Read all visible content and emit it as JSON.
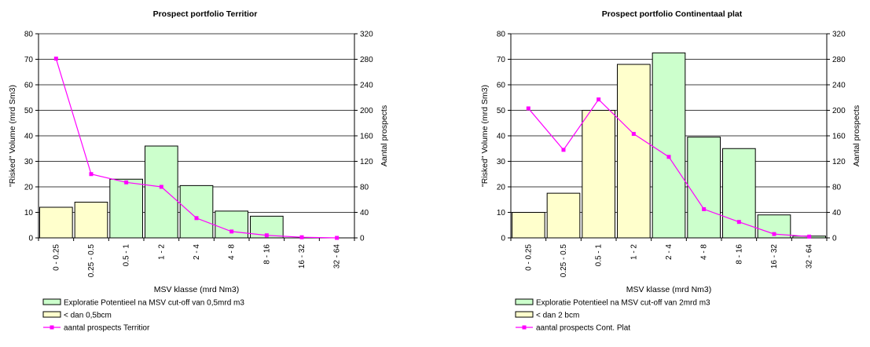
{
  "chart_data": [
    {
      "type": "bar",
      "title": "Prospect portfolio Territior",
      "xlabel": "MSV klasse (mrd Nm3)",
      "ylabel": "\"Risked\" Volume (mrd Sm3)",
      "y2label": "Aantal prospects",
      "ylim": [
        0,
        80
      ],
      "y2lim": [
        0,
        320
      ],
      "yticks": [
        "0",
        "10",
        "20",
        "30",
        "40",
        "50",
        "60",
        "70",
        "80"
      ],
      "y2ticks": [
        "0",
        "40",
        "80",
        "120",
        "160",
        "200",
        "240",
        "280",
        "320"
      ],
      "categories": [
        "0 - 0.25",
        "0.25 - 0.5",
        "0.5 - 1",
        "1 - 2",
        "2 - 4",
        "4 - 8",
        "8 - 16",
        "16 - 32",
        "32 - 64"
      ],
      "series": [
        {
          "name": "Exploratie Potentieel na MSV cut-off van 0,5mrd m3",
          "kind": "bar",
          "color": "#ccffcc",
          "values": [
            null,
            null,
            23,
            36,
            20.5,
            10.5,
            8.5,
            0,
            0
          ]
        },
        {
          "name": "< dan 0,5bcm",
          "kind": "bar",
          "color": "#ffffcc",
          "values": [
            12,
            14,
            null,
            null,
            null,
            null,
            null,
            null,
            null
          ]
        },
        {
          "name": "aantal prospects Territior",
          "kind": "line",
          "axis": "right",
          "color": "#ff00ff",
          "values": [
            281,
            100,
            87,
            80,
            31,
            10,
            4,
            1,
            0
          ]
        }
      ],
      "grid": true,
      "legend": "bottom-left"
    },
    {
      "type": "bar",
      "title": "Prospect portfolio Continentaal plat",
      "xlabel": "MSV klasse (mrd Nm3)",
      "ylabel": "\"Risked\" Volume (mrd Sm3)",
      "y2label": "Aantal prospects",
      "ylim": [
        0,
        80
      ],
      "y2lim": [
        0,
        320
      ],
      "yticks": [
        "0",
        "10",
        "20",
        "30",
        "40",
        "50",
        "60",
        "70",
        "80"
      ],
      "y2ticks": [
        "0",
        "40",
        "80",
        "120",
        "160",
        "200",
        "240",
        "280",
        "320"
      ],
      "categories": [
        "0 - 0.25",
        "0.25 - 0.5",
        "0.5 - 1",
        "1 - 2",
        "2 - 4",
        "4 - 8",
        "8 - 16",
        "16 - 32",
        "32 - 64"
      ],
      "series": [
        {
          "name": "Exploratie Potentieel na MSV cut-off van 2mrd m3",
          "kind": "bar",
          "color": "#ccffcc",
          "values": [
            null,
            null,
            null,
            null,
            72.5,
            39.5,
            35,
            9,
            0.7
          ]
        },
        {
          "name": "< dan 2 bcm",
          "kind": "bar",
          "color": "#ffffcc",
          "values": [
            10,
            17.5,
            50,
            68,
            null,
            null,
            null,
            null,
            null
          ]
        },
        {
          "name": "aantal prospects Cont. Plat",
          "kind": "line",
          "axis": "right",
          "color": "#ff00ff",
          "values": [
            203,
            138,
            217,
            163,
            127,
            45,
            25,
            6,
            2
          ]
        }
      ],
      "grid": true,
      "legend": "bottom-left"
    }
  ]
}
